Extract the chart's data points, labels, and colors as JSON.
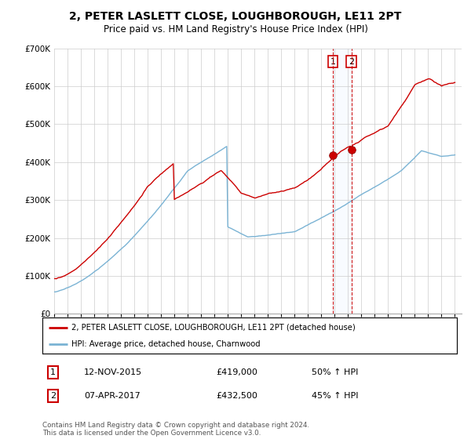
{
  "title": "2, PETER LASLETT CLOSE, LOUGHBOROUGH, LE11 2PT",
  "subtitle": "Price paid vs. HM Land Registry's House Price Index (HPI)",
  "legend_line1": "2, PETER LASLETT CLOSE, LOUGHBOROUGH, LE11 2PT (detached house)",
  "legend_line2": "HPI: Average price, detached house, Charnwood",
  "transaction1_date": "12-NOV-2015",
  "transaction1_price": "£419,000",
  "transaction1_hpi": "50% ↑ HPI",
  "transaction2_date": "07-APR-2017",
  "transaction2_price": "£432,500",
  "transaction2_hpi": "45% ↑ HPI",
  "footer": "Contains HM Land Registry data © Crown copyright and database right 2024.\nThis data is licensed under the Open Government Licence v3.0.",
  "hpi_color": "#7ab3d4",
  "price_color": "#cc0000",
  "vline_color": "#cc0000",
  "shade_color": "#ddeeff",
  "ylim": [
    0,
    700000
  ],
  "yticks": [
    0,
    100000,
    200000,
    300000,
    400000,
    500000,
    600000,
    700000
  ],
  "t1_year": 2015.875,
  "t2_year": 2017.25,
  "t1_price": 419000,
  "t2_price": 432500
}
